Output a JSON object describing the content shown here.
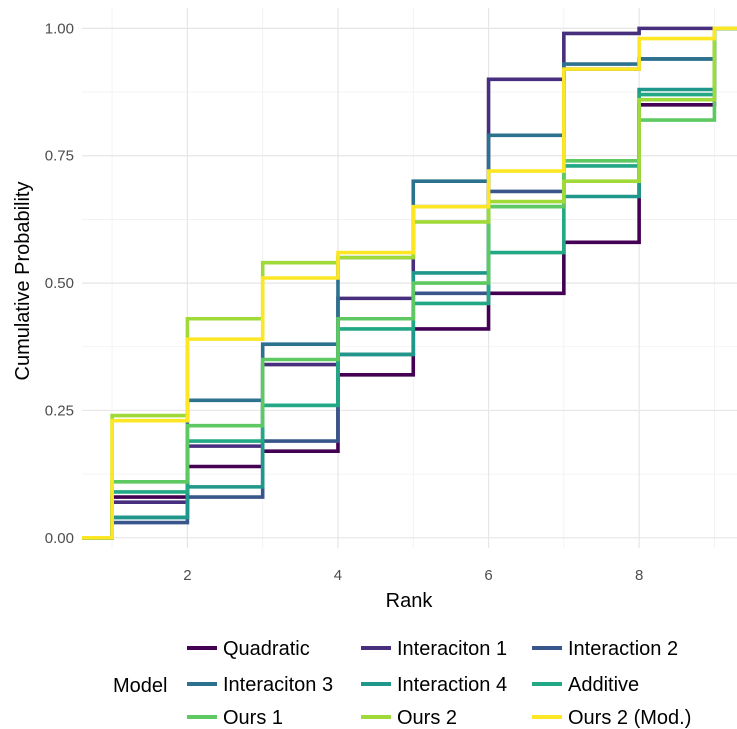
{
  "chart_data": {
    "type": "step",
    "title": "",
    "xlabel": "Rank",
    "ylabel": "Cumulative Probability",
    "xlim": [
      0.6,
      9.3
    ],
    "ylim": [
      -0.02,
      1.04
    ],
    "x_ticks": [
      2,
      4,
      6,
      8
    ],
    "y_ticks": [
      0,
      0.25,
      0.5,
      0.75,
      1
    ],
    "y_tick_labels": [
      "0.00",
      "0.25",
      "0.50",
      "0.75",
      "1.00"
    ],
    "grid": true,
    "legend": {
      "title": "Model",
      "placement": "bottom"
    },
    "x": [
      1,
      2,
      3,
      4,
      5,
      6,
      7,
      8,
      9
    ],
    "series": [
      {
        "name": "Quadratic",
        "color": "#440154",
        "values": [
          0.08,
          0.14,
          0.17,
          0.32,
          0.41,
          0.48,
          0.58,
          0.85,
          1.0
        ]
      },
      {
        "name": "Interaciton 1",
        "color": "#472F7D",
        "values": [
          0.07,
          0.18,
          0.34,
          0.47,
          0.65,
          0.9,
          0.99,
          1.0,
          1.0
        ]
      },
      {
        "name": "Interaction 2",
        "color": "#39568C",
        "values": [
          0.03,
          0.08,
          0.19,
          0.36,
          0.48,
          0.68,
          0.92,
          0.94,
          1.0
        ]
      },
      {
        "name": "Interaciton 3",
        "color": "#2C728E",
        "values": [
          0.04,
          0.27,
          0.38,
          0.55,
          0.7,
          0.79,
          0.93,
          0.94,
          1.0
        ]
      },
      {
        "name": "Interaction 4",
        "color": "#1F988B",
        "values": [
          0.04,
          0.1,
          0.26,
          0.36,
          0.52,
          0.65,
          0.67,
          0.88,
          1.0
        ]
      },
      {
        "name": "Additive",
        "color": "#22A884",
        "values": [
          0.09,
          0.19,
          0.26,
          0.41,
          0.46,
          0.56,
          0.73,
          0.87,
          1.0
        ]
      },
      {
        "name": "Ours 1",
        "color": "#5EC962",
        "values": [
          0.11,
          0.22,
          0.35,
          0.43,
          0.5,
          0.65,
          0.74,
          0.82,
          1.0
        ]
      },
      {
        "name": "Ours 2",
        "color": "#A0DA39",
        "values": [
          0.24,
          0.43,
          0.54,
          0.55,
          0.62,
          0.66,
          0.7,
          0.86,
          1.0
        ]
      },
      {
        "name": "Ours 2 (Mod.)",
        "color": "#FDE725",
        "values": [
          0.23,
          0.39,
          0.51,
          0.56,
          0.65,
          0.72,
          0.92,
          0.98,
          1.0
        ]
      }
    ]
  }
}
